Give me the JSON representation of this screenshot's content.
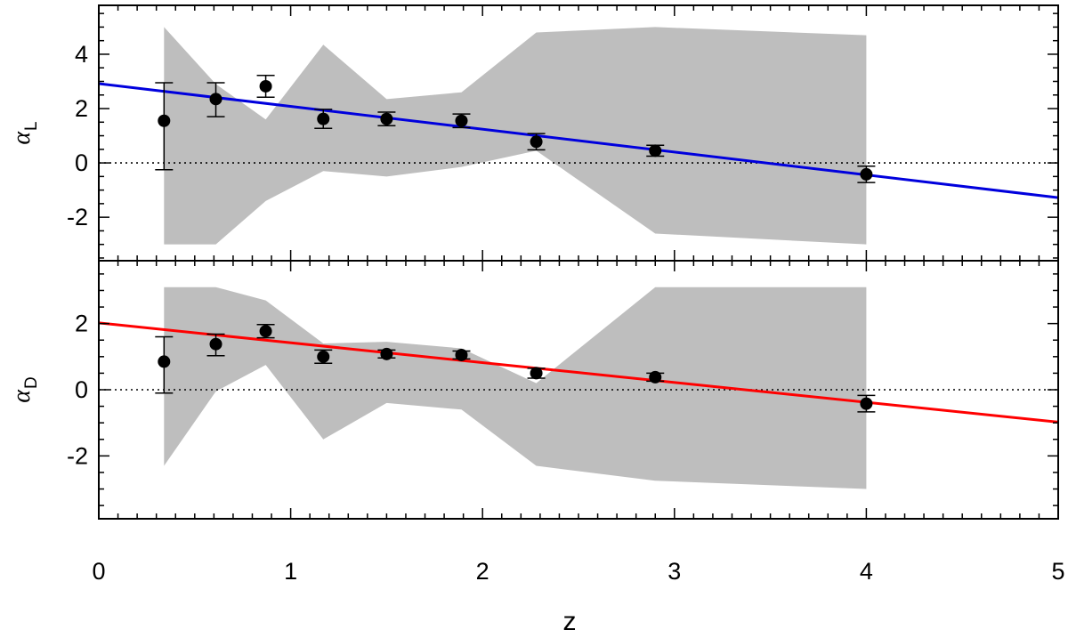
{
  "chart_data": [
    {
      "type": "scatter",
      "panel": "top",
      "ylabel": "α",
      "ylabel_sub": "L",
      "xlim": [
        0,
        5
      ],
      "ylim": [
        -3.6,
        5.8
      ],
      "yticks": [
        -2,
        0,
        2,
        4
      ],
      "ytick_labels": [
        "-2",
        "0",
        "2",
        "4"
      ],
      "reference_line": {
        "y": 0,
        "style": "dotted"
      },
      "points": [
        {
          "x": 0.34,
          "y": 1.55,
          "err_lo": 1.8,
          "err_hi": 1.4
        },
        {
          "x": 0.61,
          "y": 2.35,
          "err_lo": 0.65,
          "err_hi": 0.6
        },
        {
          "x": 0.87,
          "y": 2.82,
          "err_lo": 0.4,
          "err_hi": 0.4
        },
        {
          "x": 1.17,
          "y": 1.62,
          "err_lo": 0.35,
          "err_hi": 0.35
        },
        {
          "x": 1.5,
          "y": 1.62,
          "err_lo": 0.25,
          "err_hi": 0.25
        },
        {
          "x": 1.89,
          "y": 1.55,
          "err_lo": 0.25,
          "err_hi": 0.25
        },
        {
          "x": 2.28,
          "y": 0.78,
          "err_lo": 0.3,
          "err_hi": 0.3
        },
        {
          "x": 2.9,
          "y": 0.45,
          "err_lo": 0.2,
          "err_hi": 0.2
        },
        {
          "x": 4.0,
          "y": -0.42,
          "err_lo": 0.3,
          "err_hi": 0.3
        }
      ],
      "band": {
        "x": [
          0.34,
          0.61,
          0.87,
          1.17,
          1.5,
          1.89,
          2.28,
          2.9,
          4.0
        ],
        "lower": [
          -3.0,
          -3.0,
          -1.4,
          -0.3,
          -0.5,
          -0.15,
          0.45,
          -2.6,
          -3.0
        ],
        "upper": [
          5.0,
          2.9,
          1.6,
          4.35,
          2.35,
          2.6,
          4.8,
          5.0,
          4.7
        ]
      },
      "fit_line": {
        "x": [
          0,
          5
        ],
        "y": [
          2.92,
          -1.28
        ],
        "color": "#0000dd"
      }
    },
    {
      "type": "scatter",
      "panel": "bottom",
      "ylabel": "α",
      "ylabel_sub": "D",
      "xlabel": "z",
      "xlim": [
        0,
        5
      ],
      "ylim": [
        -3.9,
        3.9
      ],
      "yticks": [
        -2,
        0,
        2
      ],
      "ytick_labels": [
        "-2",
        "0",
        "2"
      ],
      "xticks": [
        0,
        1,
        2,
        3,
        4,
        5
      ],
      "xtick_labels": [
        "0",
        "1",
        "2",
        "3",
        "4",
        "5"
      ],
      "reference_line": {
        "y": 0,
        "style": "dotted"
      },
      "points": [
        {
          "x": 0.34,
          "y": 0.85,
          "err_lo": 0.95,
          "err_hi": 0.75
        },
        {
          "x": 0.61,
          "y": 1.38,
          "err_lo": 0.35,
          "err_hi": 0.3
        },
        {
          "x": 0.87,
          "y": 1.77,
          "err_lo": 0.2,
          "err_hi": 0.2
        },
        {
          "x": 1.17,
          "y": 1.0,
          "err_lo": 0.2,
          "err_hi": 0.2
        },
        {
          "x": 1.5,
          "y": 1.08,
          "err_lo": 0.12,
          "err_hi": 0.12
        },
        {
          "x": 1.89,
          "y": 1.05,
          "err_lo": 0.12,
          "err_hi": 0.12
        },
        {
          "x": 2.28,
          "y": 0.5,
          "err_lo": 0.15,
          "err_hi": 0.15
        },
        {
          "x": 2.9,
          "y": 0.38,
          "err_lo": 0.12,
          "err_hi": 0.12
        },
        {
          "x": 4.0,
          "y": -0.42,
          "err_lo": 0.25,
          "err_hi": 0.25
        }
      ],
      "band": {
        "x": [
          0.34,
          0.61,
          0.87,
          1.17,
          1.5,
          1.89,
          2.28,
          2.9,
          4.0
        ],
        "lower": [
          -2.3,
          -0.05,
          0.75,
          -1.5,
          -0.4,
          -0.6,
          -2.3,
          -2.75,
          -3.0
        ],
        "upper": [
          3.1,
          3.1,
          2.7,
          1.4,
          1.45,
          1.25,
          0.2,
          3.1,
          3.1
        ]
      },
      "fit_line": {
        "x": [
          0,
          5
        ],
        "y": [
          2.02,
          -0.98
        ],
        "color": "#ff0000"
      }
    }
  ]
}
